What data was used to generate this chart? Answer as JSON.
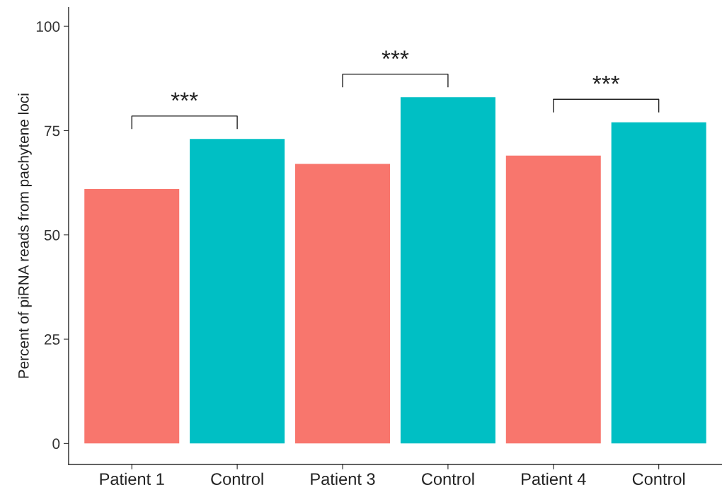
{
  "chart_data": {
    "type": "bar",
    "ylabel": "Percent of piRNA reads from pachytene loci",
    "categories": [
      "Patient 1",
      "Control",
      "Patient 3",
      "Control",
      "Patient 4",
      "Control"
    ],
    "values": [
      61,
      73,
      67,
      83,
      69,
      77
    ],
    "colors": [
      "#f8766d",
      "#00bfc4",
      "#f8766d",
      "#00bfc4",
      "#f8766d",
      "#00bfc4"
    ],
    "ylim": [
      -5,
      104.5
    ],
    "yticks": [
      0,
      25,
      50,
      75,
      100
    ],
    "grid": false,
    "annotations": [
      "***",
      "***",
      "***"
    ]
  }
}
